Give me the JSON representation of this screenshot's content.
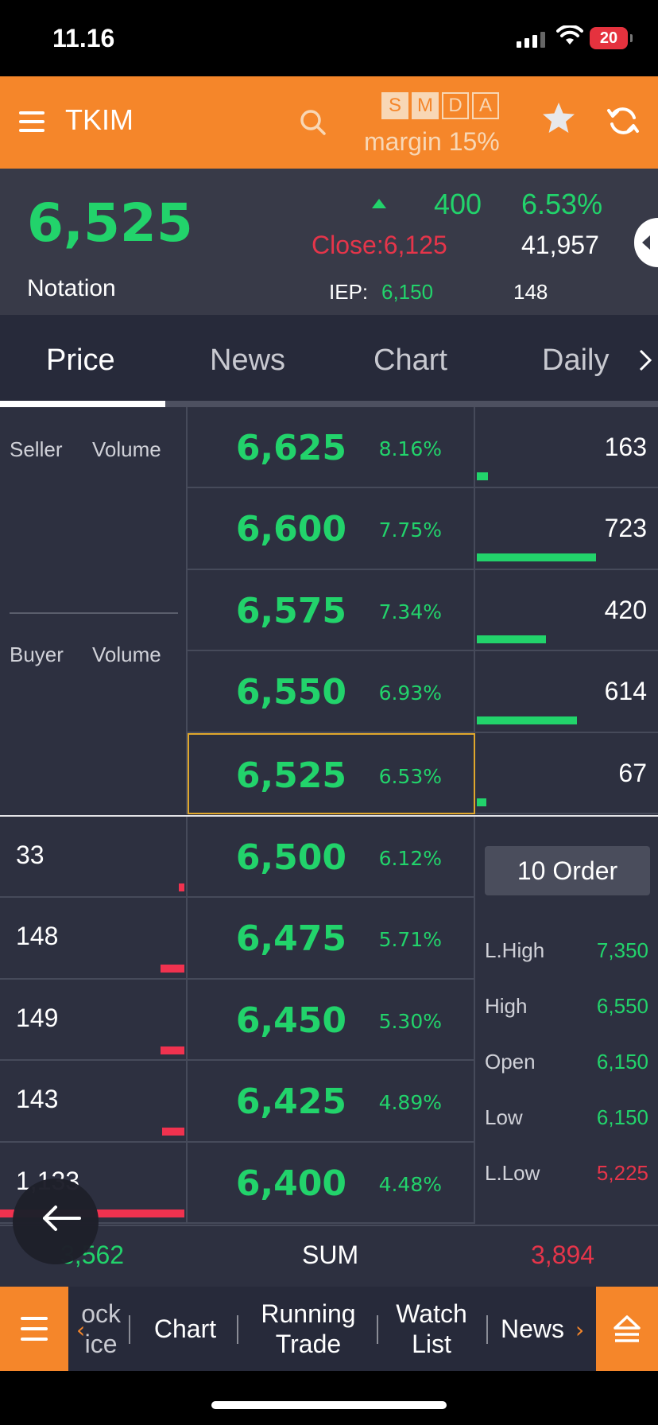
{
  "status_bar": {
    "time": "11.16",
    "battery": "20"
  },
  "header": {
    "ticker": "TKIM",
    "smda": [
      {
        "label": "S",
        "active": true
      },
      {
        "label": "M",
        "active": true
      },
      {
        "label": "D",
        "active": false
      },
      {
        "label": "A",
        "active": false
      }
    ],
    "margin": "margin 15%"
  },
  "summary": {
    "last": "6,525",
    "notation": "Notation",
    "change": "400",
    "change_pct": "6.53%",
    "close": "Close:6,125",
    "volume": "41,957",
    "iep_label": "IEP:",
    "iep_value": "6,150",
    "frequency": "148"
  },
  "tabs": [
    "Price",
    "News",
    "Chart",
    "Daily"
  ],
  "book": {
    "seller_header": "Seller",
    "buyer_header": "Buyer",
    "volume_header": "Volume",
    "offers": [
      {
        "price": "6,625",
        "pct": "8.16%",
        "volume": "163",
        "bar": 0.046
      },
      {
        "price": "6,600",
        "pct": "7.75%",
        "volume": "723",
        "bar": 0.5
      },
      {
        "price": "6,575",
        "pct": "7.34%",
        "volume": "420",
        "bar": 0.29
      },
      {
        "price": "6,550",
        "pct": "6.93%",
        "volume": "614",
        "bar": 0.42
      },
      {
        "price": "6,525",
        "pct": "6.53%",
        "volume": "67",
        "bar": 0.02
      }
    ],
    "bids": [
      {
        "price": "6,500",
        "pct": "6.12%",
        "volume": "33",
        "bar": 0.03
      },
      {
        "price": "6,475",
        "pct": "5.71%",
        "volume": "148",
        "bar": 0.13
      },
      {
        "price": "6,450",
        "pct": "5.30%",
        "volume": "149",
        "bar": 0.13
      },
      {
        "price": "6,425",
        "pct": "4.89%",
        "volume": "143",
        "bar": 0.12
      },
      {
        "price": "6,400",
        "pct": "4.48%",
        "volume": "1,133",
        "bar": 1.0
      }
    ],
    "order_button": "10 Order",
    "stats": [
      {
        "label": "L.High",
        "value": "7,350",
        "color": "#22d36b"
      },
      {
        "label": "High",
        "value": "6,550",
        "color": "#22d36b"
      },
      {
        "label": "Open",
        "value": "6,150",
        "color": "#22d36b"
      },
      {
        "label": "Low",
        "value": "6,150",
        "color": "#22d36b"
      },
      {
        "label": "L.Low",
        "value": "5,225",
        "color": "#e5354a"
      }
    ],
    "sum_bid": "3,562",
    "sum_label": "SUM",
    "sum_offer": "3,894"
  },
  "bottom_nav": {
    "items": [
      {
        "label": "ock\nice"
      },
      {
        "label": "Chart"
      },
      {
        "label": "Running\nTrade"
      },
      {
        "label": "Watch\nList"
      },
      {
        "label": "News"
      }
    ]
  },
  "colors": {
    "accent": "#f5862a",
    "up": "#22d36b",
    "down": "#e5354a",
    "bg": "#2d3040"
  }
}
